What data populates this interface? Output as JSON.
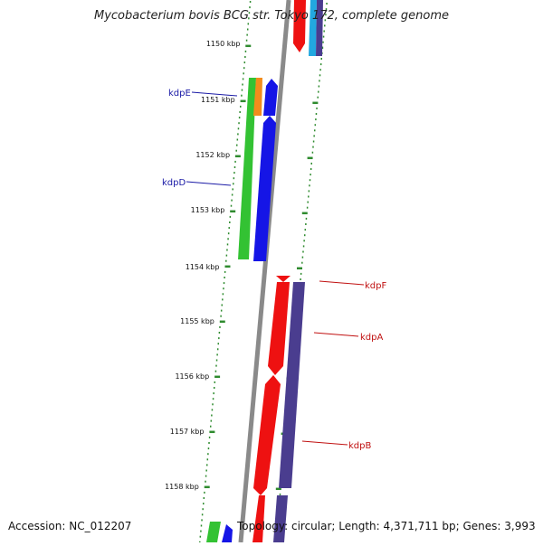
{
  "title": "Mycobacterium bovis BCG str. Tokyo 172, complete genome",
  "footer": {
    "accession": "Accession: NC_012207",
    "summary": "Topology: circular; Length: 4,371,711 bp; Genes: 3,993"
  },
  "colors": {
    "tick": "#2e8b2e",
    "backbone": "#8a8a8a",
    "label_left": "#1a1aa6",
    "label_right": "#c01010",
    "green_gene": "#33c233",
    "orange_gene": "#f28c1c",
    "blue_gene": "#1515e6",
    "red_gene": "#ee1111",
    "purple_gene": "#4a3d8f",
    "cyan_gene": "#22a8e0"
  },
  "scale": {
    "labels": [
      "1150 kbp",
      "1151 kbp",
      "1152 kbp",
      "1153 kbp",
      "1154 kbp",
      "1155 kbp",
      "1156 kbp",
      "1157 kbp",
      "1158 kbp"
    ]
  },
  "genes": [
    {
      "name": "kdpE",
      "strand": "forward",
      "color": "orange_gene"
    },
    {
      "name": "kdpD",
      "strand": "forward",
      "color": "blue_gene"
    },
    {
      "name": "kdpF",
      "strand": "reverse",
      "color": "red_gene"
    },
    {
      "name": "kdpA",
      "strand": "reverse",
      "color": "red_gene"
    },
    {
      "name": "kdpB",
      "strand": "reverse",
      "color": "purple_gene"
    }
  ]
}
